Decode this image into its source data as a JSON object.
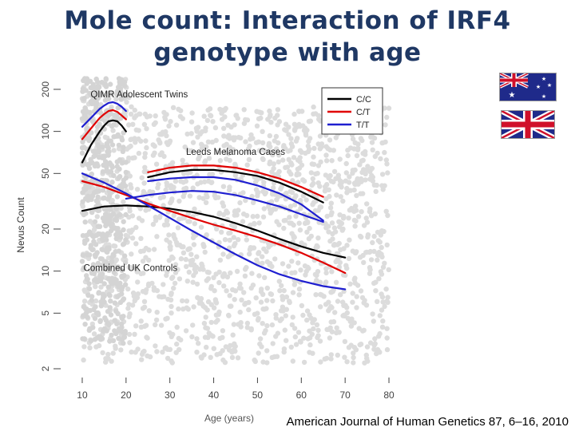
{
  "title": {
    "line1": "Mole count: Interaction of IRF4",
    "line2": "genotype with age"
  },
  "citation": "American Journal of Human Genetics 87, 6–16, 2010",
  "flags": [
    {
      "name": "australia-flag-icon",
      "icon": "australia-flag"
    },
    {
      "name": "uk-flag-icon",
      "icon": "uk-flag"
    }
  ],
  "chart_data": {
    "type": "line",
    "xlabel": "Age (years)",
    "ylabel": "Nevus Count",
    "x_ticks": [
      10,
      20,
      30,
      40,
      50,
      60,
      70,
      80
    ],
    "y_ticks": [
      2,
      5,
      10,
      20,
      50,
      100,
      200
    ],
    "xlim": [
      8,
      82
    ],
    "ylim": [
      1.8,
      260
    ],
    "y_scale": "log",
    "grid": false,
    "legend": {
      "position": "top-right",
      "entries": [
        {
          "label": "C/C",
          "color": "#000000"
        },
        {
          "label": "C/T",
          "color": "#e00000"
        },
        {
          "label": "T/T",
          "color": "#1f1fd0"
        }
      ]
    },
    "annotations": [
      {
        "text": "QIMR Adolescent Twins",
        "x": 23,
        "y": 175
      },
      {
        "text": "Leeds Melanoma Cases",
        "x": 45,
        "y": 68
      },
      {
        "text": "Combined UK Controls",
        "x": 21,
        "y": 10
      }
    ],
    "series": [
      {
        "name": "C/C",
        "group": "QIMR Adolescent Twins",
        "color": "#000000",
        "x": [
          10,
          12,
          14,
          15,
          16,
          17,
          18,
          19,
          20
        ],
        "y": [
          60,
          80,
          100,
          110,
          118,
          120,
          118,
          110,
          100
        ]
      },
      {
        "name": "C/T",
        "group": "QIMR Adolescent Twins",
        "color": "#e00000",
        "x": [
          10,
          12,
          14,
          15,
          16,
          17,
          18,
          19,
          20
        ],
        "y": [
          88,
          105,
          125,
          133,
          140,
          142,
          138,
          130,
          122
        ]
      },
      {
        "name": "T/T",
        "group": "QIMR Adolescent Twins",
        "color": "#1f1fd0",
        "x": [
          10,
          12,
          14,
          15,
          16,
          17,
          18,
          19,
          20
        ],
        "y": [
          108,
          125,
          145,
          153,
          160,
          162,
          158,
          150,
          140
        ]
      },
      {
        "name": "C/C",
        "group": "Leeds Melanoma Cases",
        "color": "#000000",
        "x": [
          25,
          30,
          35,
          40,
          45,
          50,
          55,
          60,
          65
        ],
        "y": [
          47,
          51,
          53,
          53,
          51,
          48,
          43,
          37,
          31
        ]
      },
      {
        "name": "C/T",
        "group": "Leeds Melanoma Cases",
        "color": "#e00000",
        "x": [
          25,
          30,
          35,
          40,
          45,
          50,
          55,
          60,
          65
        ],
        "y": [
          51,
          55,
          57,
          57,
          55,
          51,
          46,
          40,
          34
        ]
      },
      {
        "name": "T/T",
        "group": "Leeds Melanoma Cases",
        "color": "#1f1fd0",
        "x": [
          25,
          30,
          35,
          40,
          45,
          50,
          55,
          60,
          65
        ],
        "y": [
          44,
          46,
          47,
          47,
          45,
          41,
          36,
          30,
          23
        ]
      },
      {
        "name": "C/C",
        "group": "Combined UK Controls",
        "color": "#000000",
        "x": [
          10,
          15,
          20,
          25,
          30,
          35,
          40,
          45,
          50,
          55,
          60,
          65,
          70
        ],
        "y": [
          27,
          29,
          29.5,
          29,
          28,
          26.5,
          24.5,
          22,
          19.5,
          17,
          15,
          13.5,
          12.5
        ]
      },
      {
        "name": "C/T",
        "group": "Combined UK Controls",
        "color": "#e00000",
        "x": [
          10,
          15,
          20,
          25,
          30,
          35,
          40,
          45,
          50,
          55,
          60,
          65,
          70
        ],
        "y": [
          44,
          40,
          35,
          30.5,
          27,
          24,
          21.5,
          19.5,
          17.5,
          15.5,
          13.5,
          11.5,
          9.7
        ]
      },
      {
        "name": "T/T",
        "group": "Combined UK Controls",
        "color": "#1f1fd0",
        "x": [
          10,
          15,
          20,
          25,
          30,
          35,
          40,
          45,
          50,
          55,
          60,
          65,
          70
        ],
        "y": [
          50,
          43,
          36,
          29.5,
          24,
          19.5,
          16,
          13.2,
          11,
          9.5,
          8.5,
          7.8,
          7.4
        ]
      },
      {
        "name": "T/T",
        "group": "Combined UK Controls (upper)",
        "color": "#1f1fd0",
        "x": [
          20,
          25,
          30,
          35,
          40,
          45,
          50,
          55,
          60,
          65
        ],
        "y": [
          33,
          35,
          36.5,
          37.5,
          37,
          35,
          32,
          29,
          25.5,
          22.5
        ]
      }
    ]
  }
}
